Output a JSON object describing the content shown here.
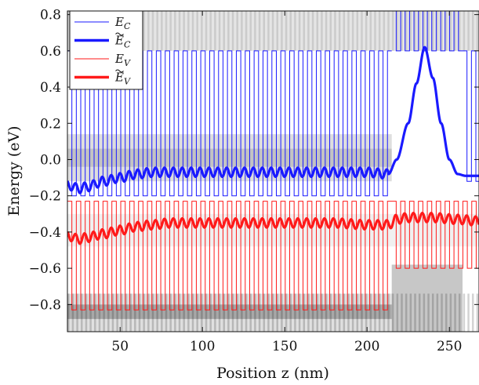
{
  "chart_data": {
    "type": "line",
    "xlabel": "Position z (nm)",
    "ylabel": "Energy (eV)",
    "xlim": [
      18,
      268
    ],
    "ylim": [
      -0.95,
      0.82
    ],
    "x_ticks": [
      50,
      100,
      150,
      200,
      250
    ],
    "y_ticks": [
      0.8,
      0.6,
      0.4,
      0.2,
      0.0,
      -0.2,
      -0.4,
      -0.6,
      -0.8
    ],
    "x_tick_labels": [
      "50",
      "100",
      "150",
      "200",
      "250"
    ],
    "y_tick_labels": [
      "0.8",
      "0.6",
      "0.4",
      "0.2",
      "0.0",
      "−0.2",
      "−0.4",
      "−0.6",
      "−0.8"
    ],
    "grid": false,
    "background": "grayscale probability density map",
    "legend_position": "top-left",
    "legend": [
      {
        "label": "E_C",
        "base": "E",
        "sub": "C",
        "tilde": false,
        "color": "#1a1aff",
        "style": "thin"
      },
      {
        "label": "Ẽ_C",
        "base": "E",
        "sub": "C",
        "tilde": true,
        "color": "#1a1aff",
        "style": "thick"
      },
      {
        "label": "E_V",
        "base": "E",
        "sub": "V",
        "tilde": false,
        "color": "#ff1a1a",
        "style": "thin"
      },
      {
        "label": "Ẽ_V",
        "base": "E",
        "sub": "V",
        "tilde": true,
        "color": "#ff1a1a",
        "style": "thick"
      }
    ],
    "series": [
      {
        "name": "E_C",
        "kind": "square_wave",
        "color": "#1a1aff",
        "segments": [
          {
            "x": [
              18,
              215
            ],
            "period": 5.4,
            "high": 0.6,
            "low": -0.2,
            "duty_high": 0.5
          },
          {
            "x": [
              215,
              258
            ],
            "period": 5.4,
            "high": 0.82,
            "low": 0.6,
            "duty_high": 0.5
          },
          {
            "x": [
              258,
              268
            ],
            "period": 5.4,
            "high": 0.6,
            "low": -0.12,
            "duty_high": 0.5
          }
        ]
      },
      {
        "name": "Ẽ_C",
        "kind": "smooth",
        "color": "#1a1aff",
        "x": [
          18,
          25,
          30,
          40,
          50,
          60,
          70,
          80,
          100,
          120,
          140,
          160,
          180,
          200,
          213,
          218,
          225,
          230,
          235,
          240,
          245,
          250,
          255,
          260,
          268
        ],
        "y": [
          -0.14,
          -0.16,
          -0.15,
          -0.12,
          -0.1,
          -0.08,
          -0.07,
          -0.07,
          -0.07,
          -0.07,
          -0.07,
          -0.07,
          -0.07,
          -0.07,
          -0.08,
          0.0,
          0.2,
          0.42,
          0.62,
          0.45,
          0.2,
          0.0,
          -0.08,
          -0.09,
          -0.09
        ],
        "ripple_amplitude": 0.025,
        "ripple_period": 5.4,
        "ripple_x_range": [
          18,
          213
        ]
      },
      {
        "name": "E_V",
        "kind": "square_wave",
        "color": "#ff1a1a",
        "segments": [
          {
            "x": [
              18,
              215
            ],
            "period": 5.4,
            "high": -0.23,
            "low": -0.83,
            "duty_high": 0.5
          },
          {
            "x": [
              215,
              268
            ],
            "period": 5.4,
            "high": -0.23,
            "low": -0.6,
            "duty_high": 0.5
          }
        ]
      },
      {
        "name": "Ẽ_V",
        "kind": "smooth",
        "color": "#ff1a1a",
        "x": [
          18,
          25,
          30,
          40,
          50,
          60,
          70,
          80,
          100,
          120,
          140,
          160,
          180,
          200,
          213,
          218,
          225,
          240,
          255,
          268
        ],
        "y": [
          -0.42,
          -0.44,
          -0.43,
          -0.41,
          -0.39,
          -0.37,
          -0.36,
          -0.35,
          -0.35,
          -0.35,
          -0.35,
          -0.35,
          -0.35,
          -0.36,
          -0.36,
          -0.33,
          -0.32,
          -0.32,
          -0.33,
          -0.34
        ],
        "ripple_amplitude": 0.025,
        "ripple_period": 5.4,
        "ripple_x_range": [
          18,
          268
        ]
      }
    ]
  }
}
